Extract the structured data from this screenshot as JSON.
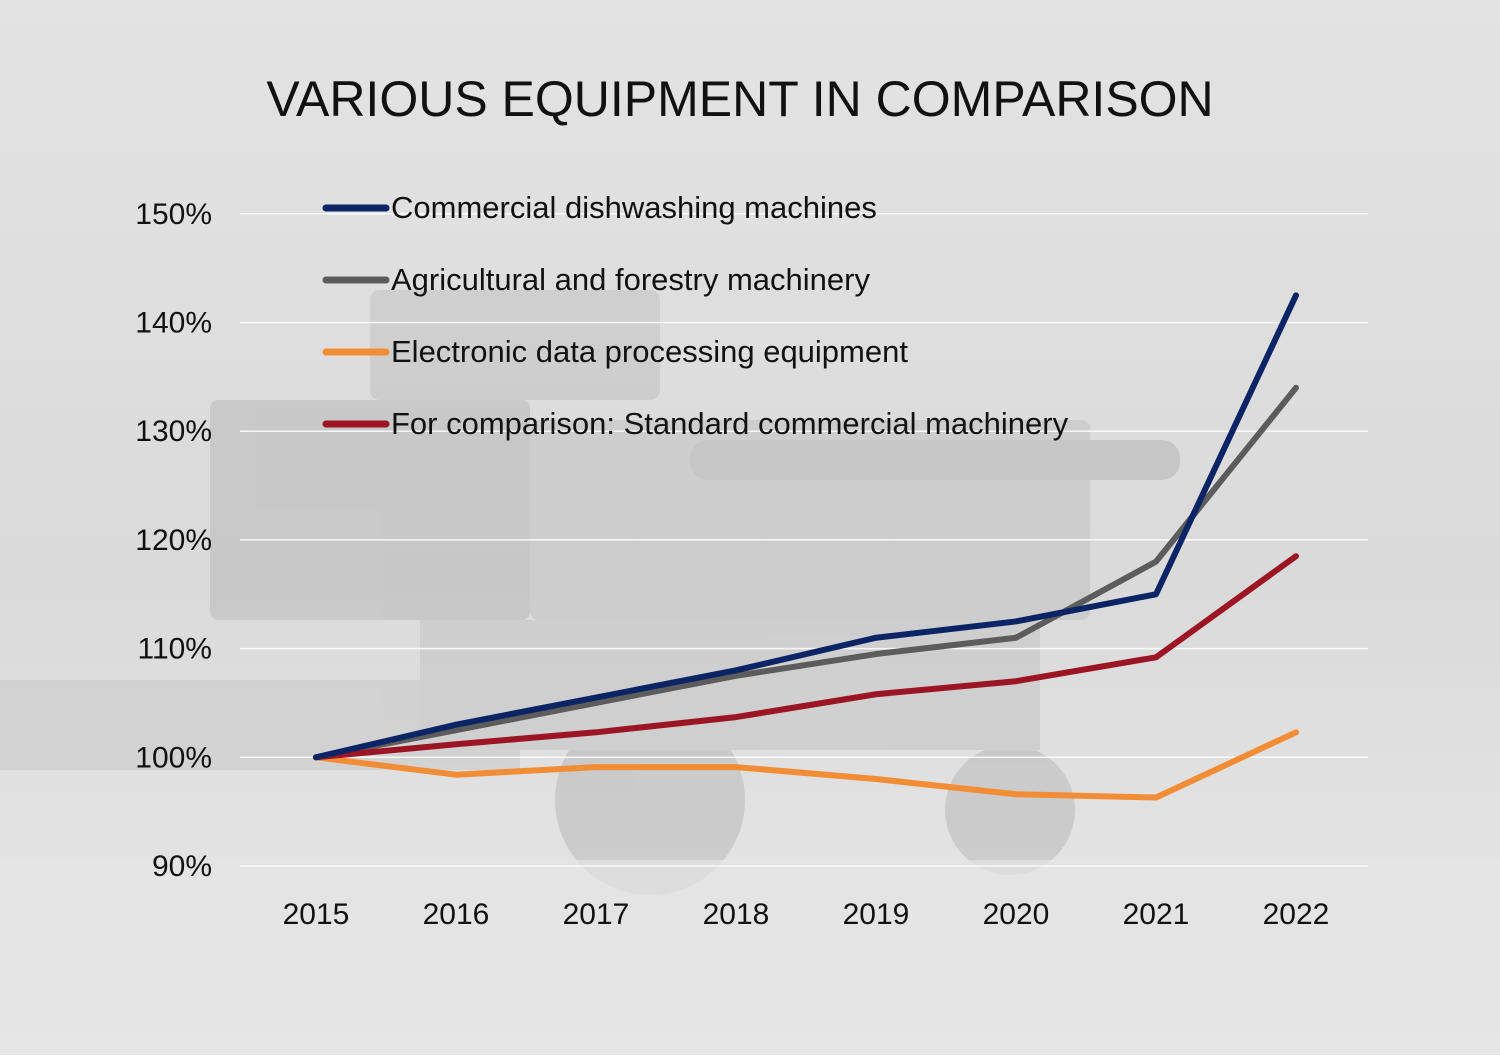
{
  "chart_data": {
    "type": "line",
    "title": "VARIOUS EQUIPMENT IN COMPARISON",
    "x": [
      "2015",
      "2016",
      "2017",
      "2018",
      "2019",
      "2020",
      "2021",
      "2022"
    ],
    "y_ticks": [
      "90%",
      "100%",
      "110%",
      "120%",
      "130%",
      "140%",
      "150%"
    ],
    "ylim": [
      90,
      150
    ],
    "grid": true,
    "legend_position": "top-left",
    "series": [
      {
        "name": "Commercial dishwashing machines",
        "color": "#0b2466",
        "values": [
          100,
          103,
          105.5,
          108,
          111,
          112.5,
          115,
          142.5
        ]
      },
      {
        "name": "Agricultural and forestry machinery",
        "color": "#5c5c5c",
        "values": [
          100,
          102.5,
          105,
          107.5,
          109.5,
          111,
          118,
          134
        ]
      },
      {
        "name": "Electronic data processing equipment",
        "color": "#f28d35",
        "values": [
          100,
          98.4,
          99.1,
          99.1,
          98,
          96.6,
          96.3,
          102.3
        ]
      },
      {
        "name": "For comparison: Standard commercial machinery",
        "color": "#9c1524",
        "values": [
          100,
          101.2,
          102.3,
          103.7,
          105.8,
          107,
          109.2,
          118.5
        ]
      }
    ]
  }
}
